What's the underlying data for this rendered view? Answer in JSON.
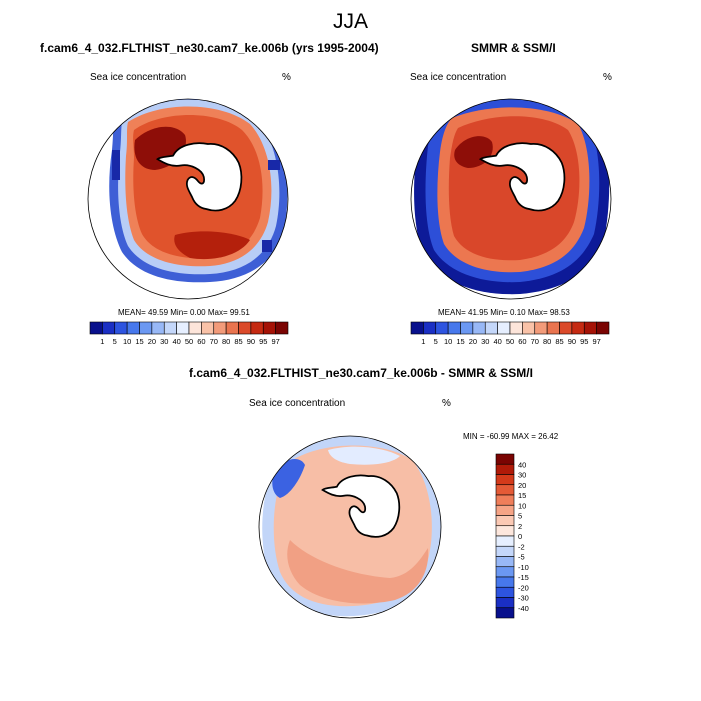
{
  "figure_title": "JJA",
  "panels": [
    {
      "title": "f.cam6_4_032.FLTHIST_ne30.cam7_ke.006b (yrs 1995-2004)",
      "variable": "Sea ice concentration",
      "units": "%",
      "stats": "MEAN=  49.59  Min=   0.00  Max=  99.51"
    },
    {
      "title": "SMMR & SSM/I",
      "variable": "Sea ice concentration",
      "units": "%",
      "stats": "MEAN=  41.95  Min=   0.10  Max=  98.53"
    },
    {
      "title": "f.cam6_4_032.FLTHIST_ne30.cam7_ke.006b - SMMR & SSM/I",
      "variable": "Sea ice concentration",
      "units": "%",
      "stats": "MIN = -60.99 MAX =  26.42"
    }
  ],
  "colorbar_concentration": {
    "labels": [
      "1",
      "5",
      "10",
      "15",
      "20",
      "30",
      "40",
      "50",
      "60",
      "70",
      "80",
      "85",
      "90",
      "95",
      "97"
    ],
    "colors": [
      "#08108c",
      "#1a2fc4",
      "#2d54e0",
      "#4778ec",
      "#6b98f2",
      "#98b8f6",
      "#c4d7fa",
      "#e6efff",
      "#fde5da",
      "#f9c2a8",
      "#f29b7a",
      "#e9744f",
      "#db4a2a",
      "#c52a12",
      "#a51206",
      "#7a0402"
    ]
  },
  "colorbar_difference": {
    "labels": [
      "40",
      "30",
      "20",
      "15",
      "10",
      "5",
      "2",
      "0",
      "-2",
      "-5",
      "-10",
      "-15",
      "-20",
      "-30",
      "-40"
    ],
    "colors": [
      "#7a0402",
      "#b01a08",
      "#d43a1a",
      "#e45a36",
      "#ef7e5a",
      "#f6a486",
      "#fbc9b4",
      "#fde7dd",
      "#e6efff",
      "#c4d7fa",
      "#98b8f6",
      "#6b98f2",
      "#4778ec",
      "#2d54e0",
      "#1a2fc4",
      "#08108c"
    ]
  }
}
